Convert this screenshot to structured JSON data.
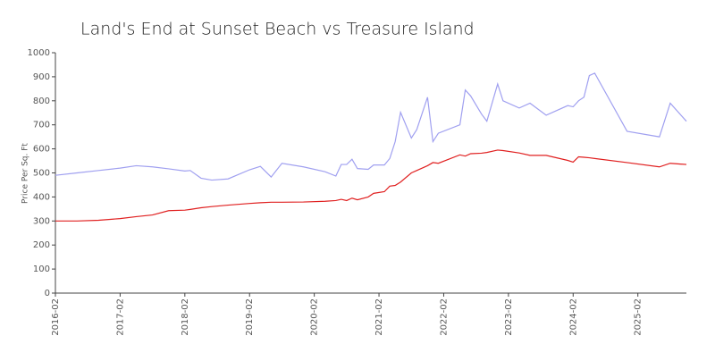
{
  "chart_data": {
    "type": "line",
    "title": "Land's End at Sunset Beach vs Treasure Island",
    "y_label": "Price Per Sq. Ft",
    "x": [
      "2016-02",
      "2016-06",
      "2016-10",
      "2017-02",
      "2017-05",
      "2017-08",
      "2017-11",
      "2018-02",
      "2018-03",
      "2018-05",
      "2018-07",
      "2018-10",
      "2019-02",
      "2019-04",
      "2019-06",
      "2019-08",
      "2019-12",
      "2020-04",
      "2020-06",
      "2020-07",
      "2020-08",
      "2020-09",
      "2020-10",
      "2020-12",
      "2021-01",
      "2021-03",
      "2021-04",
      "2021-05",
      "2021-06",
      "2021-08",
      "2021-09",
      "2021-11",
      "2021-12",
      "2022-01",
      "2022-05",
      "2022-06",
      "2022-07",
      "2022-09",
      "2022-10",
      "2022-12",
      "2023-01",
      "2023-04",
      "2023-06",
      "2023-09",
      "2024-01",
      "2024-02",
      "2024-03",
      "2024-04",
      "2024-05",
      "2024-06",
      "2024-12",
      "2025-06",
      "2025-08",
      "2025-11"
    ],
    "series": [
      {
        "color": "#a0a0f0",
        "values": [
          490,
          500,
          510,
          520,
          530,
          525,
          517,
          508,
          510,
          478,
          470,
          475,
          513,
          527,
          483,
          540,
          525,
          505,
          487,
          535,
          535,
          557,
          518,
          515,
          533,
          533,
          560,
          630,
          752,
          645,
          680,
          815,
          630,
          665,
          700,
          845,
          820,
          745,
          715,
          870,
          800,
          770,
          790,
          740,
          780,
          775,
          800,
          815,
          905,
          915,
          673,
          650,
          790,
          715
        ]
      },
      {
        "color": "#e02020",
        "values": [
          300,
          300,
          303,
          310,
          318,
          325,
          343,
          345,
          348,
          355,
          360,
          366,
          373,
          376,
          378,
          378,
          379,
          382,
          385,
          390,
          385,
          395,
          388,
          400,
          415,
          422,
          445,
          448,
          462,
          500,
          510,
          530,
          543,
          540,
          575,
          570,
          580,
          582,
          585,
          595,
          593,
          583,
          573,
          573,
          552,
          545,
          567,
          565,
          563,
          560,
          543,
          525,
          540,
          535
        ]
      }
    ],
    "xlim": [
      "2016-02",
      "2025-11"
    ],
    "xticks": [
      "2016-02",
      "2017-02",
      "2018-02",
      "2019-02",
      "2020-02",
      "2021-02",
      "2022-02",
      "2023-02",
      "2024-02",
      "2025-02"
    ],
    "ylim": [
      0,
      1000
    ],
    "yticks": [
      0,
      100,
      200,
      300,
      400,
      500,
      600,
      700,
      800,
      900,
      1000
    ]
  }
}
